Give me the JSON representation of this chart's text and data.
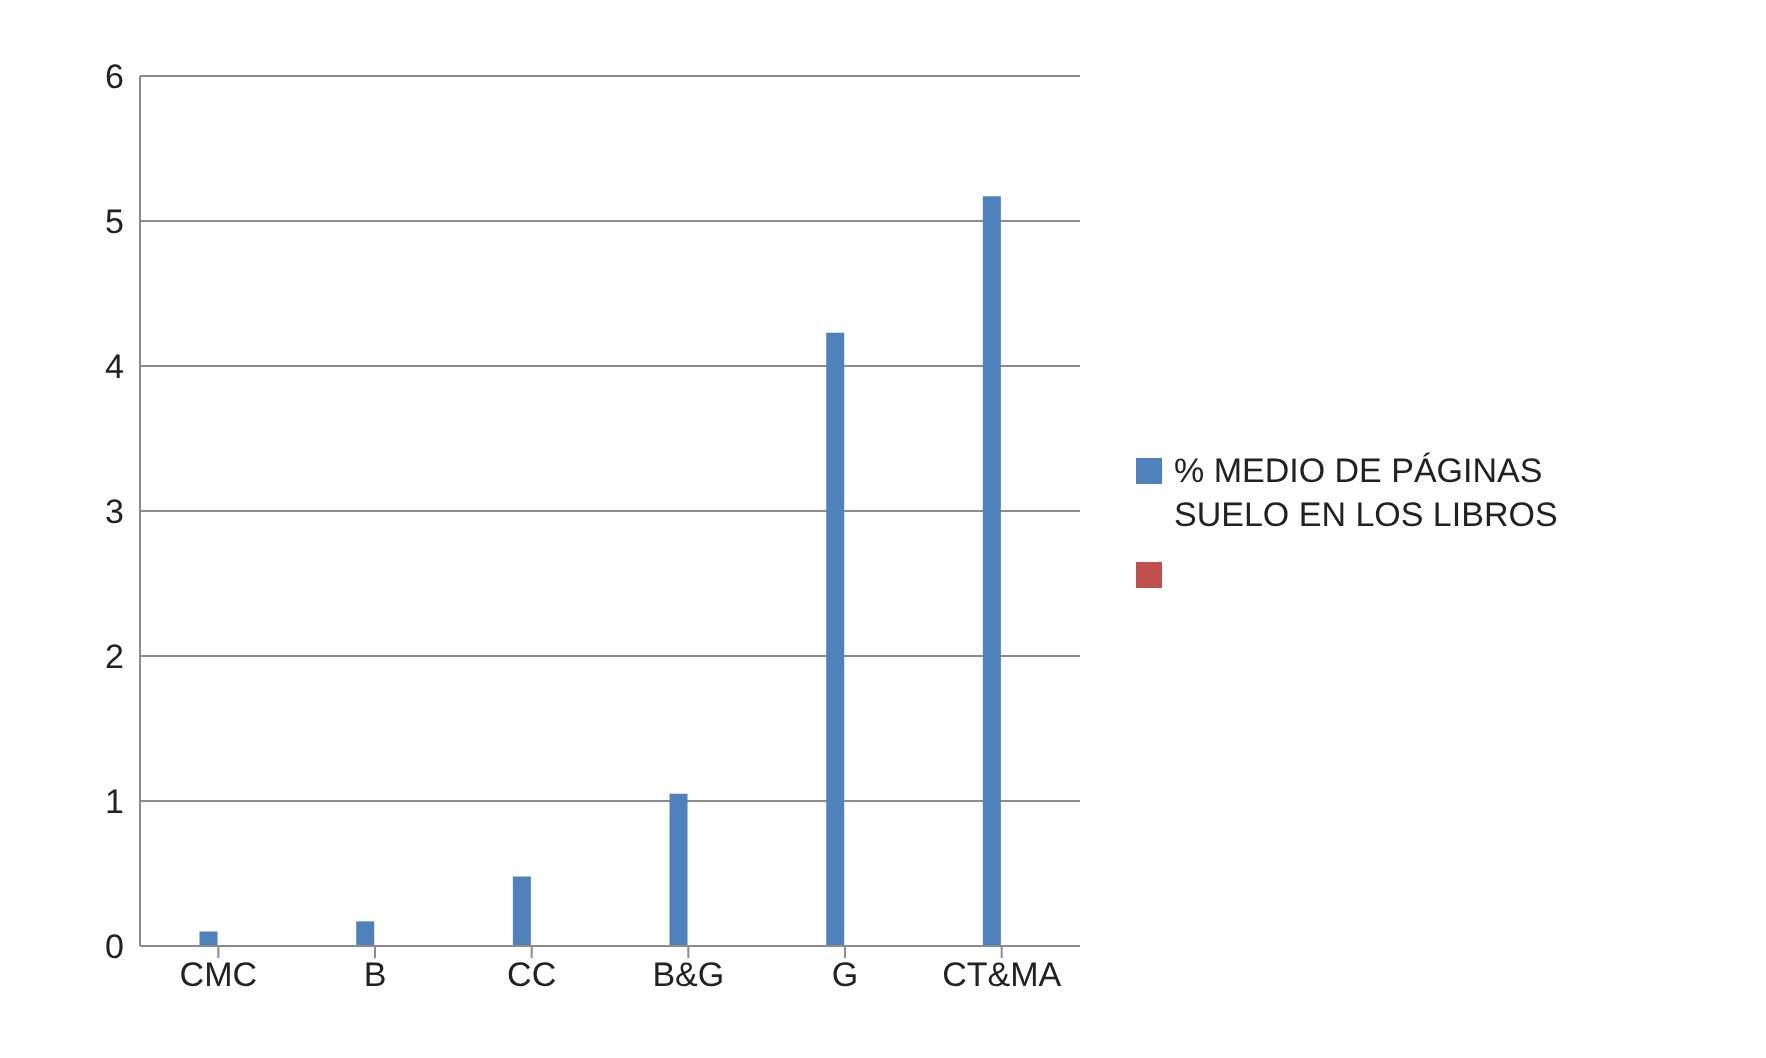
{
  "chart_data": {
    "type": "bar",
    "categories": [
      "CMC",
      "B",
      "CC",
      "B&G",
      "G",
      "CT&MA"
    ],
    "series": [
      {
        "name": "% MEDIO DE PÁGINAS SUELO EN LOS LIBROS",
        "color": "#4f81bd",
        "values": [
          0.1,
          0.17,
          0.48,
          1.05,
          4.23,
          5.17
        ]
      },
      {
        "color": "#c0504d",
        "values": [
          null,
          null,
          null,
          null,
          null,
          null
        ]
      }
    ],
    "ylim": [
      0,
      6
    ],
    "yticks": [
      0,
      1,
      2,
      3,
      4,
      5,
      6
    ],
    "grid": "y",
    "legend": "right"
  }
}
